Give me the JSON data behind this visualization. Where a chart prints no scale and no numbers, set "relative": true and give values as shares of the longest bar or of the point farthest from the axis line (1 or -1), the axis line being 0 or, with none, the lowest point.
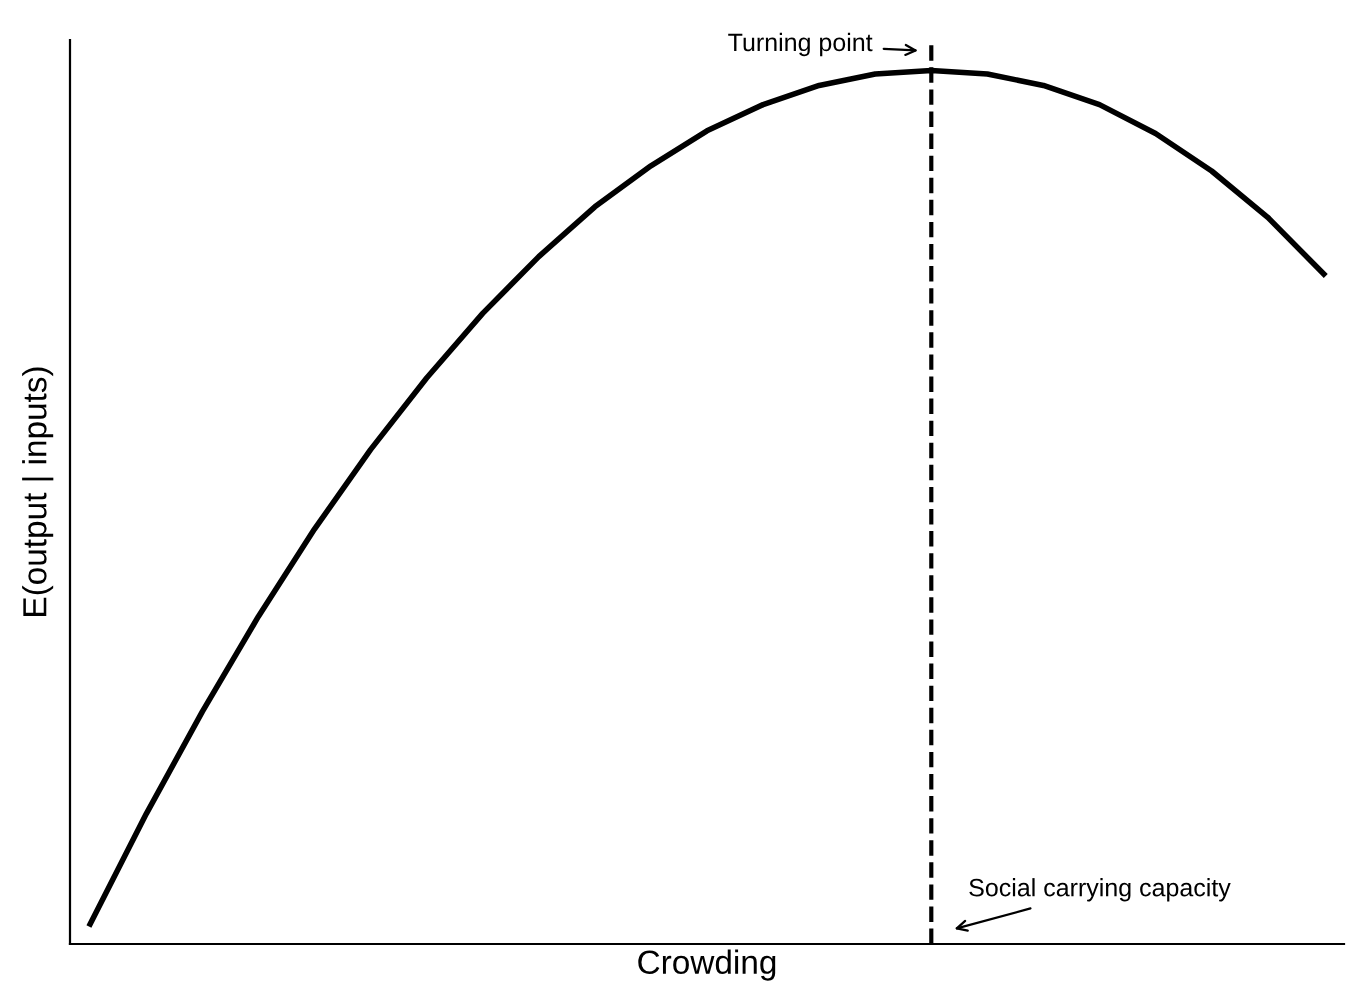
{
  "chart_data": {
    "type": "line",
    "relative": true,
    "xlabel": "Crowding",
    "ylabel": "E(output | inputs)",
    "categories": [
      null,
      null,
      null,
      null,
      null,
      null,
      null,
      null,
      null,
      null,
      null,
      null,
      null,
      null,
      null,
      null,
      null,
      null,
      null,
      null,
      null,
      null,
      null
    ],
    "series": [
      {
        "color": "#000000",
        "values": [
          0.023,
          0.149,
          0.266,
          0.375,
          0.475,
          0.566,
          0.648,
          0.722,
          0.787,
          0.844,
          0.891,
          0.931,
          0.961,
          0.983,
          0.996,
          1,
          0.996,
          0.983,
          0.961,
          0.928,
          0.885,
          0.832,
          0.767
        ]
      }
    ],
    "annotations": [
      "Turning point",
      "Social carrying capacity"
    ],
    "tick_labels": false,
    "grid": false,
    "legend": false,
    "marker": "none",
    "line_style": "solid"
  }
}
